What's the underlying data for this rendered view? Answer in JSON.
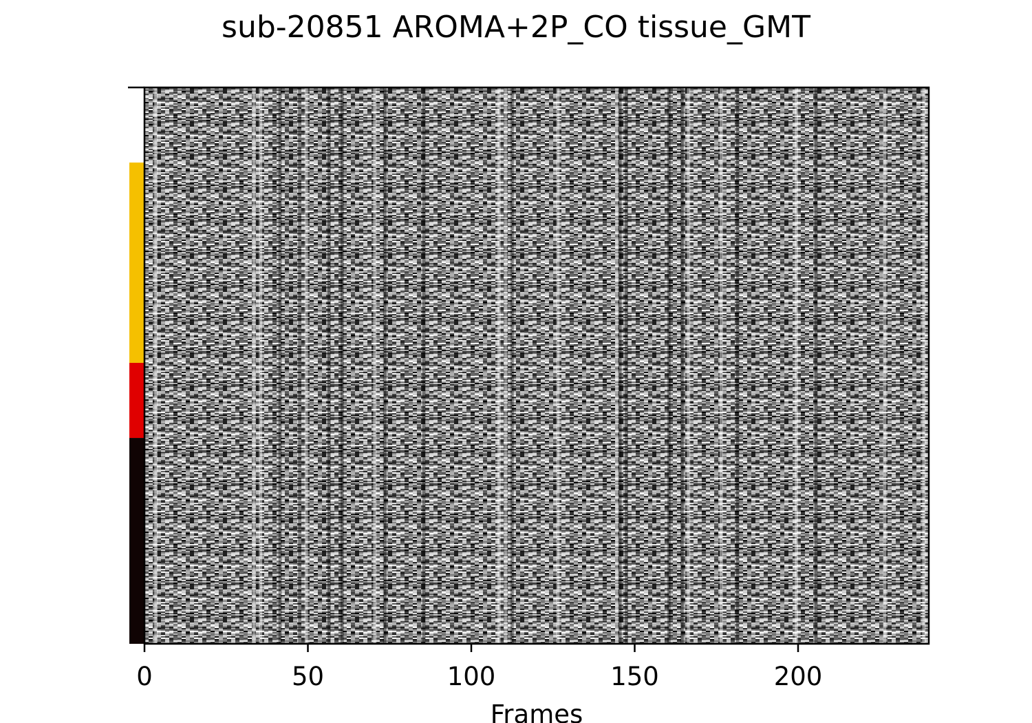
{
  "chart_data": {
    "type": "heatmap",
    "title": "sub-20851 AROMA+2P_CO tissue_GMT",
    "xlabel": "Frames",
    "ylabel": "",
    "xlim": [
      0,
      240
    ],
    "x_ticks": [
      0,
      50,
      100,
      150,
      200
    ],
    "n_frames": 240,
    "colormap": "grayscale",
    "grid": false,
    "row_segments": [
      {
        "color": "#ffffff",
        "fraction": 0.135
      },
      {
        "color": "#f5c000",
        "fraction": 0.36
      },
      {
        "color": "#e00000",
        "fraction": 0.135
      },
      {
        "color": "#100404",
        "fraction": 0.37
      }
    ],
    "bright_frames": [
      3,
      33,
      35,
      49,
      70,
      108,
      110,
      126,
      144,
      166,
      176,
      199,
      226,
      238
    ],
    "dark_frames": [
      41,
      47,
      56,
      60,
      70,
      73,
      85,
      112,
      145,
      147,
      160,
      164,
      181,
      205
    ]
  }
}
